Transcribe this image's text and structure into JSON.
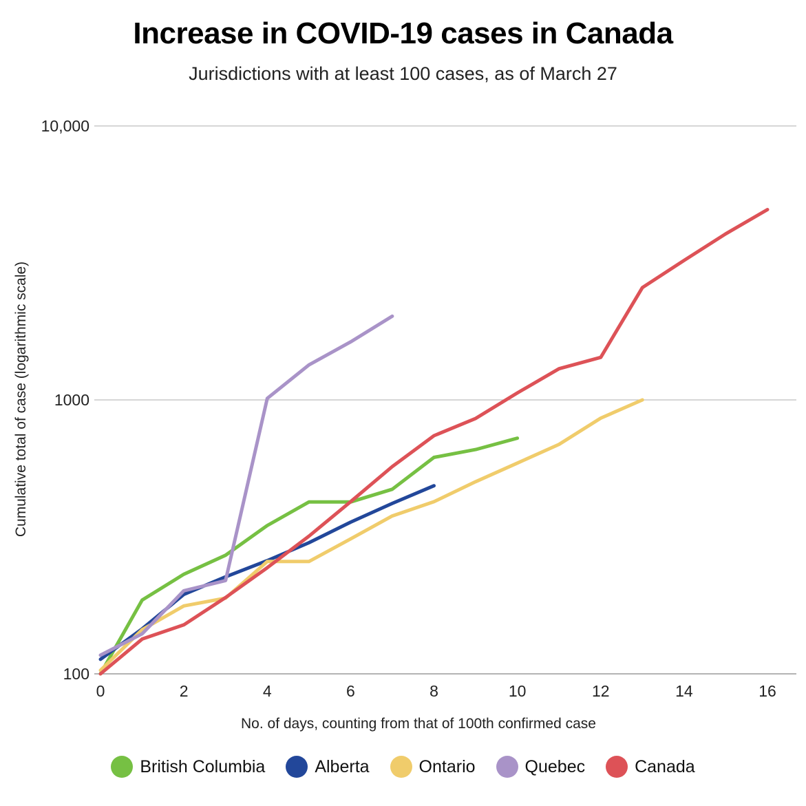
{
  "chart_data": {
    "type": "line",
    "title": "Increase in COVID-19 cases in Canada",
    "subtitle": "Jurisdictions with at least 100 cases, as of March 27",
    "xlabel": "No. of days, counting from that of 100th confirmed case",
    "ylabel": "Cumulative total of case (logarithmic scale)",
    "xlim": [
      0,
      16.5
    ],
    "ylim": [
      100,
      10000
    ],
    "yscale": "log",
    "x_ticks": [
      0,
      2,
      4,
      6,
      8,
      10,
      12,
      14,
      16
    ],
    "y_ticks": [
      {
        "value": 100,
        "label": "100"
      },
      {
        "value": 1000,
        "label": "1000"
      },
      {
        "value": 10000,
        "label": "10,000"
      }
    ],
    "grid": true,
    "legend_position": "bottom",
    "series": [
      {
        "name": "British Columbia",
        "color": "#76C043",
        "x": [
          0,
          1,
          2,
          3,
          4,
          5,
          6,
          7,
          8,
          9,
          10
        ],
        "values": [
          100,
          186,
          231,
          271,
          348,
          424,
          424,
          472,
          617,
          659,
          725
        ]
      },
      {
        "name": "Alberta",
        "color": "#22479A",
        "x": [
          0,
          1,
          2,
          3,
          4,
          5,
          6,
          7,
          8
        ],
        "values": [
          113,
          146,
          195,
          226,
          259,
          301,
          358,
          419,
          486
        ]
      },
      {
        "name": "Ontario",
        "color": "#F0CC6B",
        "x": [
          0,
          1,
          2,
          3,
          4,
          5,
          6,
          7,
          8,
          9,
          10,
          11,
          12,
          13
        ],
        "values": [
          103,
          145,
          177,
          189,
          257,
          257,
          311,
          377,
          425,
          503,
          588,
          688,
          858,
          1000
        ]
      },
      {
        "name": "Quebec",
        "color": "#A993C8",
        "x": [
          0,
          1,
          2,
          3,
          4,
          5,
          6,
          7
        ],
        "values": [
          117,
          140,
          201,
          219,
          1013,
          1342,
          1629,
          2021
        ]
      },
      {
        "name": "Canada",
        "color": "#DD5257",
        "x": [
          0,
          1,
          2,
          3,
          4,
          5,
          6,
          7,
          8,
          9,
          10,
          11,
          12,
          13,
          14,
          15,
          16
        ],
        "values": [
          100,
          134,
          151,
          190,
          244,
          318,
          425,
          571,
          740,
          856,
          1060,
          1300,
          1430,
          2570,
          3230,
          4040,
          4950
        ]
      }
    ]
  }
}
